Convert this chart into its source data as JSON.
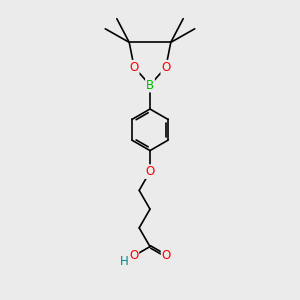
{
  "bg_color": "#ebebeb",
  "atom_colors": {
    "B": "#00bb00",
    "O": "#ff0000",
    "C": "#000000",
    "H": "#008888"
  },
  "bond_color": "#000000",
  "bond_width": 1.2,
  "font_size_atoms": 8.5,
  "fig_size": [
    3.0,
    3.0
  ],
  "dpi": 100,
  "xlim": [
    -2.2,
    2.2
  ],
  "ylim": [
    -4.5,
    5.8
  ]
}
